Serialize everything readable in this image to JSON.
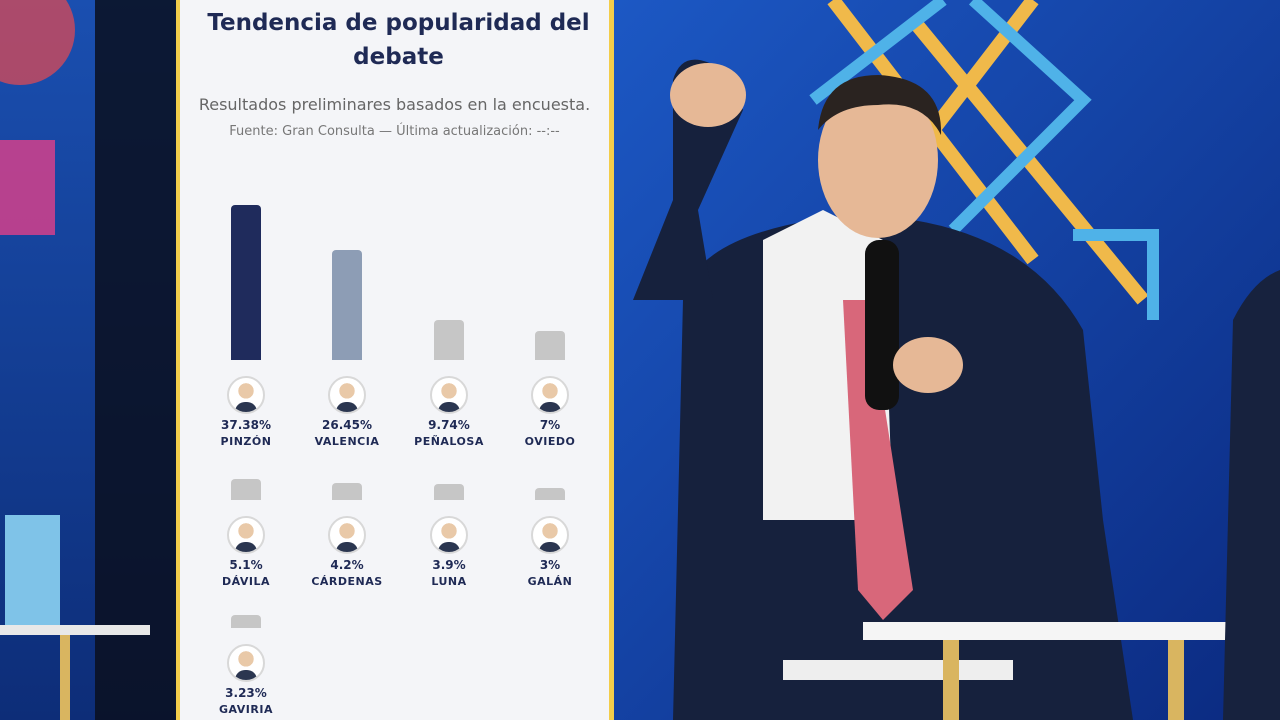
{
  "chart_data": {
    "type": "bar",
    "title": "Tendencia de popularidad del debate",
    "subtitle": "Resultados preliminares basados en la encuesta.",
    "source": "Fuente: Gran Consulta — Última actualización: --:--",
    "categories": [
      "PINZÓN",
      "VALENCIA",
      "PEÑALOSA",
      "OVIEDO",
      "DÁVILA",
      "CÁRDENAS",
      "LUNA",
      "GALÁN",
      "GAVIRIA"
    ],
    "values": [
      37.38,
      26.45,
      9.74,
      7,
      5.1,
      4.2,
      3.9,
      3,
      3.23
    ],
    "value_labels": [
      "37.38%",
      "26.45%",
      "9.74%",
      "7%",
      "5.1%",
      "4.2%",
      "3.9%",
      "3%",
      "3.23%"
    ],
    "colors": [
      "#1f2b5c",
      "#8d9db5",
      "#c6c6c6",
      "#c6c6c6",
      "#c6c6c6",
      "#c6c6c6",
      "#c6c6c6",
      "#c6c6c6",
      "#c6c6c6"
    ]
  }
}
